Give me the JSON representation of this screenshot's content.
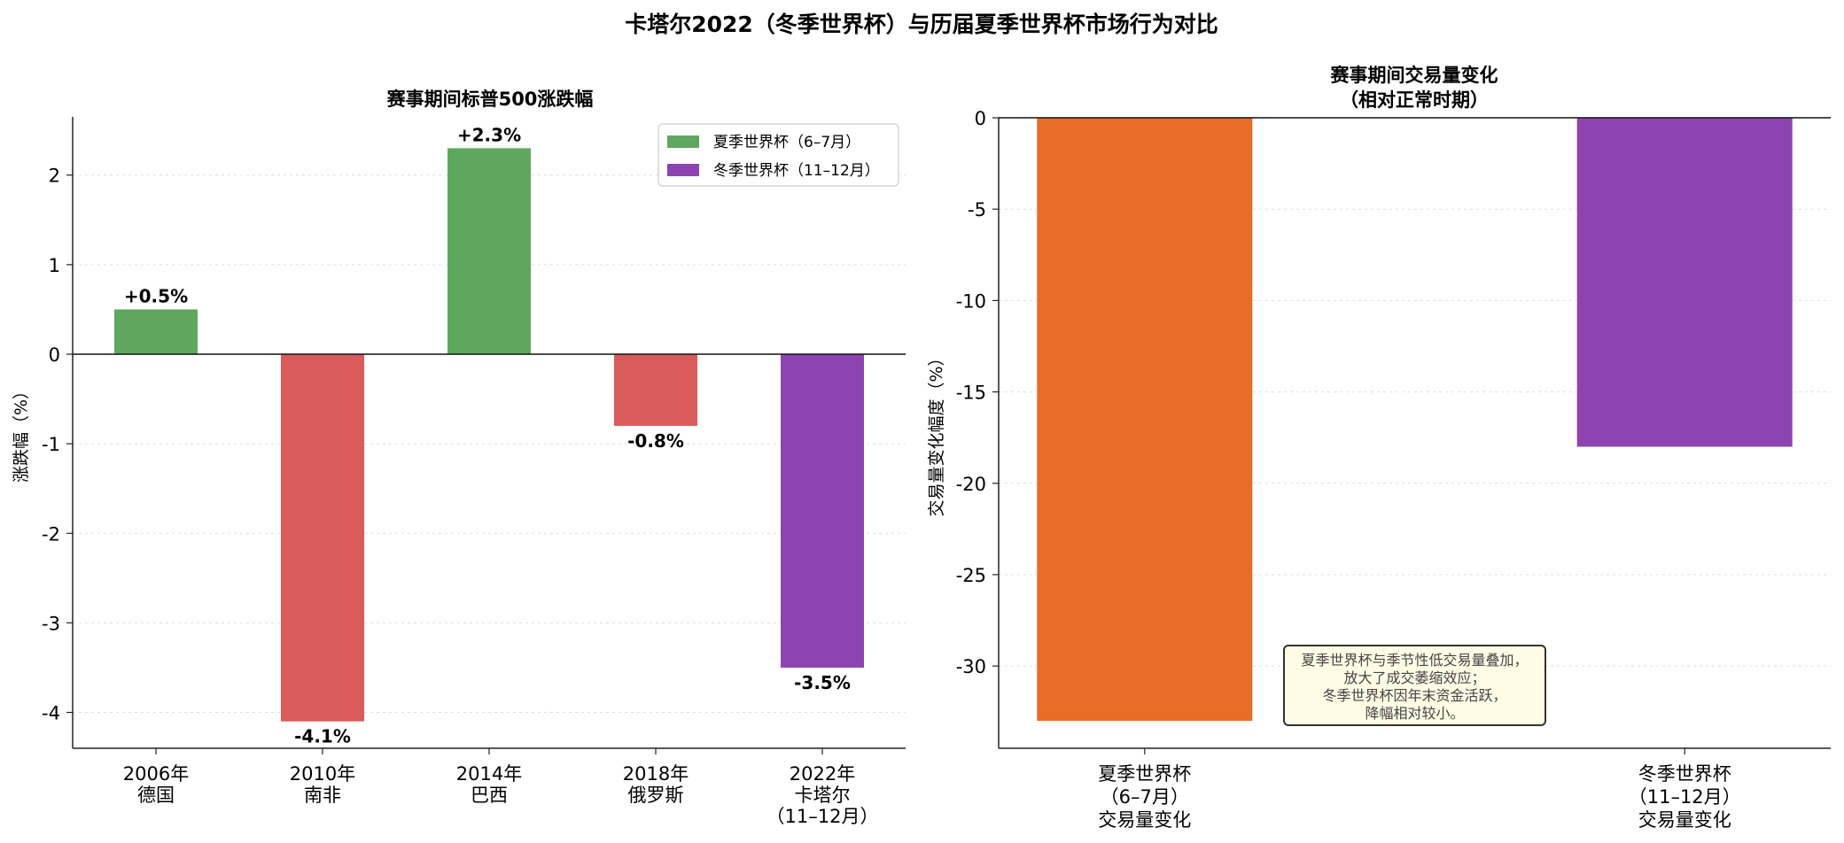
{
  "figure": {
    "title": "卡塔尔2022（冬季世界杯）与历届夏季世界杯市场行为对比"
  },
  "colors": {
    "summer_up": "#5fa75f",
    "summer_down": "#d95b5b",
    "winter": "#8e44b0",
    "summer_volume": "#e86d26",
    "annotation_bg": "#fdfde6",
    "annotation_border": "#333333",
    "grid": "#dddddd"
  },
  "chart_data": [
    {
      "type": "bar",
      "title": "赛事期间标普500涨跌幅",
      "xlabel": "",
      "ylabel": "涨跌幅（%）",
      "ylim": [
        -4.4,
        2.65
      ],
      "yticks": [
        2,
        1,
        0,
        -1,
        -2,
        -3,
        -4
      ],
      "ytick_labels": [
        "2",
        "1",
        "0",
        "-1",
        "-2",
        "-3",
        "-4"
      ],
      "categories": [
        [
          "2006年",
          "德国"
        ],
        [
          "2010年",
          "南非"
        ],
        [
          "2014年",
          "巴西"
        ],
        [
          "2018年",
          "俄罗斯"
        ],
        [
          "2022年",
          "卡塔尔",
          "（11–12月）"
        ]
      ],
      "values": [
        0.5,
        -4.1,
        2.3,
        -0.8,
        -3.5
      ],
      "data_labels": [
        "+0.5%",
        "-4.1%",
        "+2.3%",
        "-0.8%",
        "-3.5%"
      ],
      "season": [
        "summer",
        "summer",
        "summer",
        "summer",
        "winter"
      ],
      "legend": {
        "placement": "top-right",
        "entries": [
          {
            "label": "夏季世界杯（6–7月）",
            "color": "#5fa75f"
          },
          {
            "label": "冬季世界杯（11–12月）",
            "color": "#8e44b0"
          }
        ]
      },
      "grid": true
    },
    {
      "type": "bar",
      "title": [
        "赛事期间交易量变化",
        "（相对正常时期）"
      ],
      "xlabel": "",
      "ylabel": "交易量变化幅度（%）",
      "ylim": [
        -34.5,
        0
      ],
      "yticks": [
        0,
        -5,
        -10,
        -15,
        -20,
        -25,
        -30
      ],
      "ytick_labels": [
        "0",
        "-5",
        "-10",
        "-15",
        "-20",
        "-25",
        "-30"
      ],
      "categories": [
        [
          "夏季世界杯",
          "（6–7月）",
          "交易量变化"
        ],
        [
          "冬季世界杯",
          "（11–12月）",
          "交易量变化"
        ]
      ],
      "values": [
        -33,
        -18
      ],
      "colors": [
        "#e86d26",
        "#8e44b0"
      ],
      "annotation": [
        "夏季世界杯与季节性低交易量叠加，",
        "放大了成交萎缩效应；",
        "冬季世界杯因年末资金活跃，",
        "降幅相对较小。"
      ],
      "grid": true
    }
  ]
}
